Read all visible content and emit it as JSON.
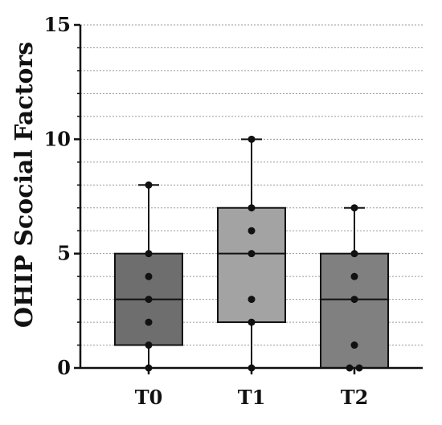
{
  "chart_data": {
    "type": "box",
    "title": "",
    "xlabel": "",
    "ylabel": "OHIP Scocial Factors",
    "ylim": [
      0,
      15
    ],
    "yticks": [
      0,
      5,
      10,
      15
    ],
    "grid": {
      "horizontal": true,
      "style": "dashed",
      "step": 1
    },
    "categories": [
      "T0",
      "T1",
      "T2"
    ],
    "series": [
      {
        "category": "T0",
        "min": 0,
        "q1": 1,
        "median": 3,
        "q3": 5,
        "max": 8,
        "color": "#6e6e6e",
        "points": [
          0,
          1,
          2,
          3,
          4,
          5,
          8
        ]
      },
      {
        "category": "T1",
        "min": 0,
        "q1": 2,
        "median": 5,
        "q3": 7,
        "max": 10,
        "color": "#a3a3a3",
        "points": [
          0,
          2,
          3,
          5,
          6,
          7,
          10
        ]
      },
      {
        "category": "T2",
        "min": 0,
        "q1": 0,
        "median": 3,
        "q3": 5,
        "max": 7,
        "color": "#808080",
        "points": [
          0,
          0,
          1,
          3,
          4,
          5,
          7
        ]
      }
    ]
  }
}
